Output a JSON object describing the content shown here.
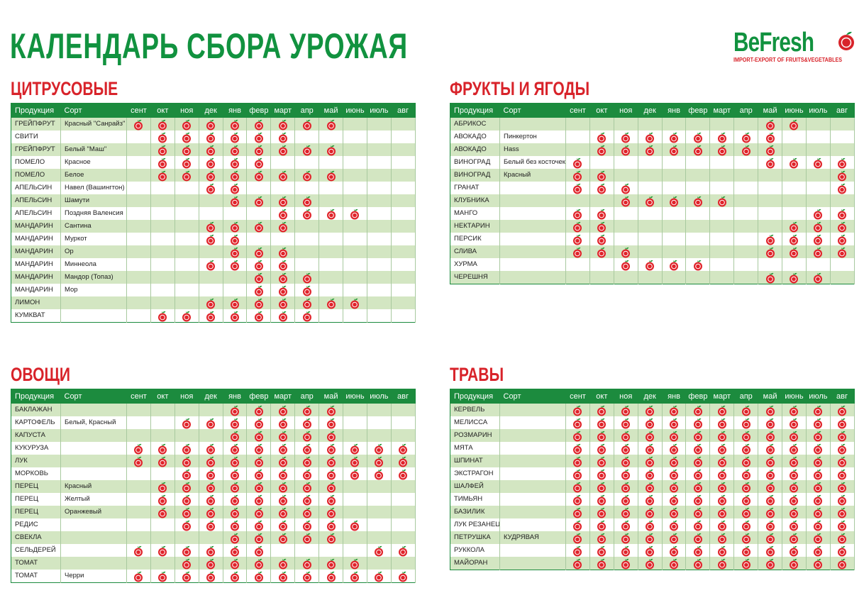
{
  "header": {
    "title": "КАЛЕНДАРЬ СБОРА УРОЖАЯ",
    "logo": {
      "name": "BeFresh",
      "tagline": "IMPORT-EXPORT OF FRUITS&VEGETABLES"
    }
  },
  "sections": [
    {
      "title": "ЦИТРУСОВЫЕ",
      "columns": [
        "Продукция",
        "Сорт",
        "сент",
        "окт",
        "ноя",
        "дек",
        "янв",
        "февр",
        "март",
        "апр",
        "май",
        "июнь",
        "июль",
        "авг"
      ],
      "rows": [
        {
          "product": "ГРЕЙПФРУТ",
          "variety": "Красный \"Санрайз\"",
          "harvest": [
            true,
            true,
            true,
            true,
            true,
            true,
            true,
            true,
            true,
            false,
            false,
            false
          ]
        },
        {
          "product": "СВИТИ",
          "harvest": [
            false,
            true,
            true,
            true,
            true,
            true,
            true,
            false,
            false,
            false,
            false,
            false
          ]
        },
        {
          "product": "ГРЕЙПФРУТ",
          "variety": "Белый \"Маш\"",
          "harvest": [
            false,
            true,
            true,
            true,
            true,
            true,
            true,
            true,
            true,
            false,
            false,
            false
          ]
        },
        {
          "product": "ПОМЕЛО",
          "variety": "Красное",
          "harvest": [
            false,
            true,
            true,
            true,
            true,
            true,
            false,
            false,
            false,
            false,
            false,
            false
          ]
        },
        {
          "product": "ПОМЕЛО",
          "variety": "Белое",
          "harvest": [
            false,
            true,
            true,
            true,
            true,
            true,
            true,
            true,
            true,
            false,
            false,
            false
          ]
        },
        {
          "product": "АПЕЛЬСИН",
          "variety": "Навел (Вашингтон)",
          "harvest": [
            false,
            false,
            false,
            true,
            true,
            false,
            false,
            false,
            false,
            false,
            false,
            false
          ]
        },
        {
          "product": "АПЕЛЬСИН",
          "variety": "Шамути",
          "harvest": [
            false,
            false,
            false,
            false,
            true,
            true,
            true,
            true,
            false,
            false,
            false,
            false
          ]
        },
        {
          "product": "АПЕЛЬСИН",
          "variety": "Поздняя Валенсия",
          "harvest": [
            false,
            false,
            false,
            false,
            false,
            false,
            true,
            true,
            true,
            true,
            false,
            false
          ]
        },
        {
          "product": "МАНДАРИН",
          "variety": "Сантина",
          "harvest": [
            false,
            false,
            false,
            true,
            true,
            true,
            true,
            false,
            false,
            false,
            false,
            false
          ]
        },
        {
          "product": "МАНДАРИН",
          "variety": "Муркот",
          "harvest": [
            false,
            false,
            false,
            true,
            true,
            false,
            false,
            false,
            false,
            false,
            false,
            false
          ]
        },
        {
          "product": "МАНДАРИН",
          "variety": "Ор",
          "harvest": [
            false,
            false,
            false,
            false,
            true,
            true,
            true,
            false,
            false,
            false,
            false,
            false
          ]
        },
        {
          "product": "МАНДАРИН",
          "variety": "Миннеола",
          "harvest": [
            false,
            false,
            false,
            true,
            true,
            true,
            true,
            false,
            false,
            false,
            false,
            false
          ]
        },
        {
          "product": "МАНДАРИН",
          "variety": "Мандор (Топаз)",
          "harvest": [
            false,
            false,
            false,
            false,
            false,
            true,
            true,
            true,
            false,
            false,
            false,
            false
          ]
        },
        {
          "product": "МАНДАРИН",
          "variety": "Мор",
          "harvest": [
            false,
            false,
            false,
            false,
            false,
            true,
            true,
            true,
            false,
            false,
            false,
            false
          ]
        },
        {
          "product": "ЛИМОН",
          "harvest": [
            false,
            false,
            false,
            true,
            true,
            true,
            true,
            true,
            true,
            true,
            false,
            false
          ]
        },
        {
          "product": "КУМКВАТ",
          "harvest": [
            false,
            true,
            true,
            true,
            true,
            true,
            true,
            true,
            false,
            false,
            false,
            false
          ]
        }
      ]
    },
    {
      "title": "ФРУКТЫ И ЯГОДЫ",
      "columns": [
        "Продукция",
        "Сорт",
        "сент",
        "окт",
        "ноя",
        "дек",
        "янв",
        "февр",
        "март",
        "апр",
        "май",
        "июнь",
        "июль",
        "авг"
      ],
      "rows": [
        {
          "product": "АБРИКОС",
          "harvest": [
            false,
            false,
            false,
            false,
            false,
            false,
            false,
            false,
            true,
            true,
            false,
            false
          ]
        },
        {
          "product": "АВОКАДО",
          "variety": "Пинкертон",
          "harvest": [
            false,
            true,
            true,
            true,
            true,
            true,
            true,
            true,
            true,
            false,
            false,
            false
          ]
        },
        {
          "product": "АВОКАДО",
          "variety": "Hass",
          "harvest": [
            false,
            true,
            true,
            true,
            true,
            true,
            true,
            true,
            true,
            false,
            false,
            false
          ]
        },
        {
          "product": "ВИНОГРАД",
          "variety": "Белый без косточек",
          "harvest": [
            true,
            false,
            false,
            false,
            false,
            false,
            false,
            false,
            true,
            true,
            true,
            true
          ]
        },
        {
          "product": "ВИНОГРАД",
          "variety": "Красный",
          "harvest": [
            true,
            true,
            false,
            false,
            false,
            false,
            false,
            false,
            false,
            false,
            false,
            true
          ]
        },
        {
          "product": "ГРАНАТ",
          "harvest": [
            true,
            true,
            true,
            false,
            false,
            false,
            false,
            false,
            false,
            false,
            false,
            true
          ]
        },
        {
          "product": "КЛУБНИКА",
          "harvest": [
            false,
            false,
            true,
            true,
            true,
            true,
            true,
            false,
            false,
            false,
            false,
            false
          ]
        },
        {
          "product": "МАНГО",
          "harvest": [
            true,
            true,
            false,
            false,
            false,
            false,
            false,
            false,
            false,
            false,
            true,
            true
          ]
        },
        {
          "product": "НЕКТАРИН",
          "harvest": [
            true,
            true,
            false,
            false,
            false,
            false,
            false,
            false,
            false,
            true,
            true,
            true
          ]
        },
        {
          "product": "ПЕРСИК",
          "harvest": [
            true,
            true,
            false,
            false,
            false,
            false,
            false,
            false,
            true,
            true,
            true,
            true
          ]
        },
        {
          "product": "СЛИВА",
          "harvest": [
            true,
            true,
            true,
            false,
            false,
            false,
            false,
            false,
            true,
            true,
            true,
            true
          ]
        },
        {
          "product": "ХУРМА",
          "harvest": [
            false,
            false,
            true,
            true,
            true,
            true,
            false,
            false,
            false,
            false,
            false,
            false
          ]
        },
        {
          "product": "ЧЕРЕШНЯ",
          "harvest": [
            false,
            false,
            false,
            false,
            false,
            false,
            false,
            false,
            true,
            true,
            true,
            false
          ]
        }
      ]
    },
    {
      "title": "ОВОЩИ",
      "columns": [
        "Продукция",
        "Сорт",
        "сент",
        "окт",
        "ноя",
        "дек",
        "янв",
        "февр",
        "март",
        "апр",
        "май",
        "июнь",
        "июль",
        "авг"
      ],
      "rows": [
        {
          "product": "БАКЛАЖАН",
          "harvest": [
            false,
            false,
            false,
            false,
            true,
            true,
            true,
            true,
            true,
            false,
            false,
            false
          ]
        },
        {
          "product": "КАРТОФЕЛЬ",
          "variety": "Белый, Красный",
          "harvest": [
            false,
            false,
            true,
            true,
            true,
            true,
            true,
            true,
            true,
            false,
            false,
            false
          ]
        },
        {
          "product": "КАПУСТА",
          "harvest": [
            false,
            false,
            false,
            false,
            true,
            true,
            true,
            true,
            true,
            false,
            false,
            false
          ]
        },
        {
          "product": "КУКУРУЗА",
          "harvest": [
            true,
            true,
            true,
            true,
            true,
            true,
            true,
            true,
            true,
            true,
            true,
            true
          ]
        },
        {
          "product": "ЛУК",
          "harvest": [
            true,
            true,
            true,
            true,
            true,
            true,
            true,
            true,
            true,
            true,
            true,
            true
          ]
        },
        {
          "product": "МОРКОВЬ",
          "harvest": [
            false,
            false,
            true,
            true,
            true,
            true,
            true,
            true,
            true,
            true,
            true,
            true
          ]
        },
        {
          "product": "ПЕРЕЦ",
          "variety": "Красный",
          "harvest": [
            false,
            true,
            true,
            true,
            true,
            true,
            true,
            true,
            true,
            false,
            false,
            false
          ]
        },
        {
          "product": "ПЕРЕЦ",
          "variety": "Желтый",
          "harvest": [
            false,
            true,
            true,
            true,
            true,
            true,
            true,
            true,
            true,
            false,
            false,
            false
          ]
        },
        {
          "product": "ПЕРЕЦ",
          "variety": "Оранжевый",
          "harvest": [
            false,
            true,
            true,
            true,
            true,
            true,
            true,
            true,
            true,
            false,
            false,
            false
          ]
        },
        {
          "product": "РЕДИС",
          "harvest": [
            false,
            false,
            true,
            true,
            true,
            true,
            true,
            true,
            true,
            true,
            false,
            false
          ]
        },
        {
          "product": "СВЕКЛА",
          "harvest": [
            false,
            false,
            false,
            false,
            true,
            true,
            true,
            true,
            true,
            false,
            false,
            false
          ]
        },
        {
          "product": "СЕЛЬДЕРЕЙ",
          "harvest": [
            true,
            true,
            true,
            true,
            true,
            true,
            false,
            false,
            false,
            false,
            true,
            true
          ]
        },
        {
          "product": "ТОМАТ",
          "harvest": [
            false,
            false,
            true,
            true,
            true,
            true,
            true,
            true,
            true,
            true,
            false,
            false
          ]
        },
        {
          "product": "ТОМАТ",
          "variety": "Черри",
          "harvest": [
            true,
            true,
            true,
            true,
            true,
            true,
            true,
            true,
            true,
            true,
            true,
            true
          ]
        }
      ]
    },
    {
      "title": "ТРАВЫ",
      "columns": [
        "Продукция",
        "Сорт",
        "сент",
        "окт",
        "ноя",
        "дек",
        "янв",
        "февр",
        "март",
        "апр",
        "май",
        "июнь",
        "июль",
        "авг"
      ],
      "rows": [
        {
          "product": "КЕРВЕЛЬ",
          "harvest": [
            true,
            true,
            true,
            true,
            true,
            true,
            true,
            true,
            true,
            true,
            true,
            true
          ]
        },
        {
          "product": "МЕЛИССА",
          "harvest": [
            true,
            true,
            true,
            true,
            true,
            true,
            true,
            true,
            true,
            true,
            true,
            true
          ]
        },
        {
          "product": "РОЗМАРИН",
          "harvest": [
            true,
            true,
            true,
            true,
            true,
            true,
            true,
            true,
            true,
            true,
            true,
            true
          ]
        },
        {
          "product": "МЯТА",
          "harvest": [
            true,
            true,
            true,
            true,
            true,
            true,
            true,
            true,
            true,
            true,
            true,
            true
          ]
        },
        {
          "product": "ШПИНАТ",
          "harvest": [
            true,
            true,
            true,
            true,
            true,
            true,
            true,
            true,
            true,
            true,
            true,
            true
          ]
        },
        {
          "product": "ЭКСТРАГОН",
          "harvest": [
            true,
            true,
            true,
            true,
            true,
            true,
            true,
            true,
            true,
            true,
            true,
            true
          ]
        },
        {
          "product": "ШАЛФЕЙ",
          "harvest": [
            true,
            true,
            true,
            true,
            true,
            true,
            true,
            true,
            true,
            true,
            true,
            true
          ]
        },
        {
          "product": "ТИМЬЯН",
          "harvest": [
            true,
            true,
            true,
            true,
            true,
            true,
            true,
            true,
            true,
            true,
            true,
            true
          ]
        },
        {
          "product": "БАЗИЛИК",
          "harvest": [
            true,
            true,
            true,
            true,
            true,
            true,
            true,
            true,
            true,
            true,
            true,
            true
          ]
        },
        {
          "product": "ЛУК РЕЗАНЕЦ",
          "harvest": [
            true,
            true,
            true,
            true,
            true,
            true,
            true,
            true,
            true,
            true,
            true,
            true
          ]
        },
        {
          "product": "ПЕТРУШКА",
          "variety": "КУДРЯВАЯ",
          "harvest": [
            true,
            true,
            true,
            true,
            true,
            true,
            true,
            true,
            true,
            true,
            true,
            true
          ]
        },
        {
          "product": "РУККОЛА",
          "harvest": [
            true,
            true,
            true,
            true,
            true,
            true,
            true,
            true,
            true,
            true,
            true,
            true
          ]
        },
        {
          "product": "МАЙОРАН",
          "harvest": [
            true,
            true,
            true,
            true,
            true,
            true,
            true,
            true,
            true,
            true,
            true,
            true
          ]
        }
      ]
    }
  ]
}
